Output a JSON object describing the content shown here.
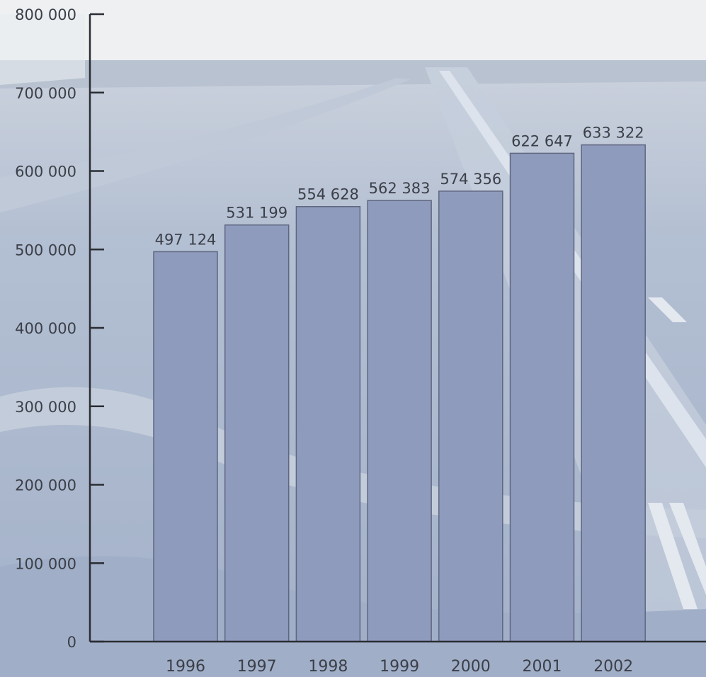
{
  "chart_data": {
    "type": "bar",
    "categories": [
      "1996",
      "1997",
      "1998",
      "1999",
      "2000",
      "2001",
      "2002"
    ],
    "values": [
      497124,
      531199,
      554628,
      562383,
      574356,
      622647,
      633322
    ],
    "data_labels": [
      "497 124",
      "531 199",
      "554 628",
      "562 383",
      "574 356",
      "622 647",
      "633 322"
    ],
    "title": "",
    "xlabel": "",
    "ylabel": "",
    "ylim": [
      0,
      800000
    ],
    "y_ticks": [
      0,
      100000,
      200000,
      300000,
      400000,
      500000,
      600000,
      700000,
      800000
    ],
    "y_tick_labels": [
      "0",
      "100 000",
      "200 000",
      "300 000",
      "400 000",
      "500 000",
      "600 000",
      "700 000",
      "800 000"
    ],
    "grid": false,
    "legend": "none",
    "colors": {
      "bar_fill": "#8e9bbd",
      "bar_stroke": "#5f6680",
      "axis": "#2a2d33",
      "text": "#3b3f48",
      "background_sky": "#eceef1",
      "background_ground": "#a9b6cc"
    }
  }
}
